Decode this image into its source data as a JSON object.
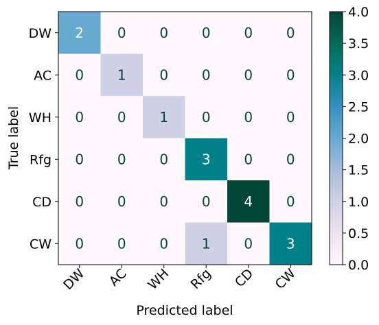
{
  "chart_data": {
    "type": "heatmap",
    "xlabel": "Predicted label",
    "ylabel": "True label",
    "x_categories": [
      "DW",
      "AC",
      "WH",
      "Rfg",
      "CD",
      "CW"
    ],
    "y_categories": [
      "DW",
      "AC",
      "WH",
      "Rfg",
      "CD",
      "CW"
    ],
    "values": [
      [
        2,
        0,
        0,
        0,
        0,
        0
      ],
      [
        0,
        1,
        0,
        0,
        0,
        0
      ],
      [
        0,
        0,
        1,
        0,
        0,
        0
      ],
      [
        0,
        0,
        0,
        3,
        0,
        0
      ],
      [
        0,
        0,
        0,
        0,
        4,
        0
      ],
      [
        0,
        0,
        0,
        1,
        0,
        3
      ]
    ],
    "colorbar": {
      "range": [
        0,
        4
      ],
      "ticks": [
        "0.0",
        "0.5",
        "1.0",
        "1.5",
        "2.0",
        "2.5",
        "3.0",
        "3.5",
        "4.0"
      ]
    },
    "colormap": "PuBuGn",
    "colors": {
      "low": "#fff7fb",
      "high": "#014636",
      "text_dark": "#014636",
      "text_light": "#ffffff"
    }
  }
}
